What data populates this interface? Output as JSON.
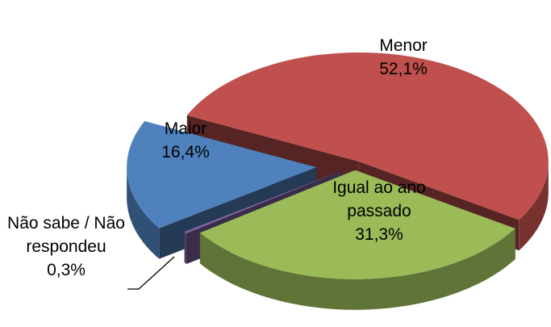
{
  "chart_data": {
    "type": "pie3d",
    "categories": [
      "Menor",
      "Igual ao ano passado",
      "Não sabe / Não respondeu",
      "Maior"
    ],
    "values": [
      52.1,
      31.3,
      0.3,
      16.4
    ],
    "value_labels": [
      "52,1%",
      "31,3%",
      "0,3%",
      "16,4%"
    ],
    "colors": [
      "#c0504d",
      "#9bbb59",
      "#8064a2",
      "#4f81bd"
    ]
  }
}
